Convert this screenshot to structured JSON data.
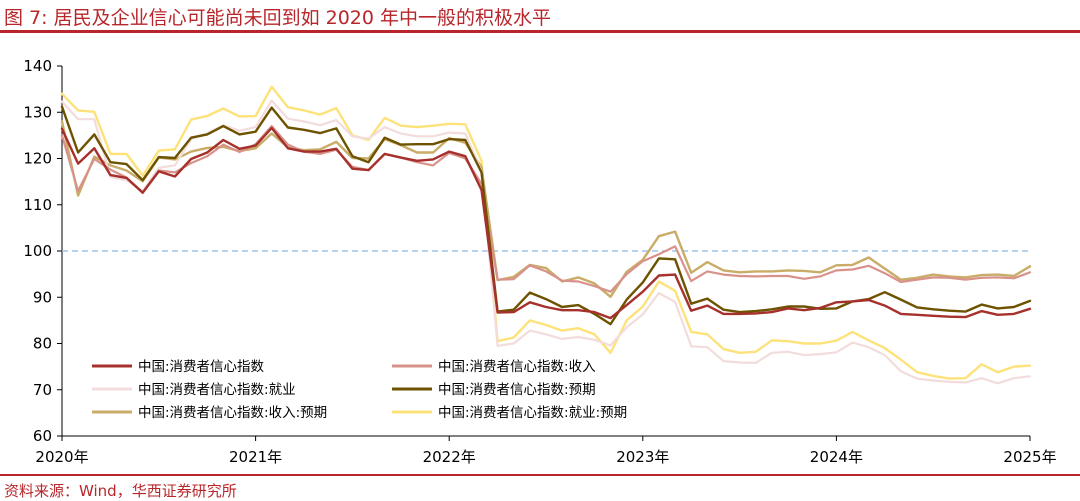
{
  "title": "图 7:  居民及企业信心可能尚未回到如 2020 年中一般的积极水平",
  "source": "资料来源：Wind，华西证券研究所",
  "chart_data": {
    "type": "line",
    "ylim": [
      60,
      140
    ],
    "yticks": [
      60,
      70,
      80,
      90,
      100,
      110,
      120,
      130,
      140
    ],
    "xlim": [
      2020.0,
      2025.0
    ],
    "xticks": [
      {
        "value": 2020,
        "label": "2020年"
      },
      {
        "value": 2021,
        "label": "2021年"
      },
      {
        "value": 2022,
        "label": "2022年"
      },
      {
        "value": 2023,
        "label": "2023年"
      },
      {
        "value": 2024,
        "label": "2024年"
      },
      {
        "value": 2025,
        "label": "2025年"
      }
    ],
    "reference_line": {
      "y": 100,
      "color": "#9dc3e6",
      "style": "dashed"
    },
    "grid": false,
    "legend_position": "bottom-left",
    "x": [
      2020.0,
      2020.083,
      2020.167,
      2020.25,
      2020.333,
      2020.417,
      2020.5,
      2020.583,
      2020.667,
      2020.75,
      2020.833,
      2020.917,
      2021.0,
      2021.083,
      2021.167,
      2021.25,
      2021.333,
      2021.417,
      2021.5,
      2021.583,
      2021.667,
      2021.75,
      2021.833,
      2021.917,
      2022.0,
      2022.083,
      2022.167,
      2022.25,
      2022.333,
      2022.417,
      2022.5,
      2022.583,
      2022.667,
      2022.75,
      2022.833,
      2022.917,
      2023.0,
      2023.083,
      2023.167,
      2023.25,
      2023.333,
      2023.417,
      2023.5,
      2023.583,
      2023.667,
      2023.75,
      2023.833,
      2023.917,
      2024.0,
      2024.083,
      2024.167,
      2024.25,
      2024.333,
      2024.417,
      2024.5,
      2024.583,
      2024.667,
      2024.75,
      2024.833,
      2024.917,
      2025.0
    ],
    "series": [
      {
        "name": "中国:消费者信心指数",
        "color": "#a5302c",
        "width": 2.4,
        "values": [
          126.4,
          118.9,
          122.2,
          116.4,
          115.8,
          112.6,
          117.2,
          116.1,
          119.9,
          121.3,
          124.0,
          122.1,
          122.8,
          126.6,
          122.2,
          121.5,
          121.5,
          122.1,
          117.8,
          117.5,
          121.0,
          120.2,
          119.5,
          119.8,
          121.5,
          120.5,
          113.2,
          86.7,
          86.8,
          88.9,
          87.9,
          87.2,
          87.2,
          86.8,
          85.5,
          88.3,
          91.2,
          94.7,
          94.9,
          87.1,
          88.2,
          86.4,
          86.4,
          86.5,
          86.8,
          87.6,
          87.2,
          87.7,
          88.9,
          89.1,
          89.4,
          88.2,
          86.4,
          86.2,
          86.0,
          85.8,
          85.7,
          87.0,
          86.2,
          86.4,
          87.5
        ]
      },
      {
        "name": "中国:消费者信心指数:收入",
        "color": "#d9928b",
        "width": 2.2,
        "values": [
          125.0,
          113.0,
          119.9,
          117.6,
          115.9,
          112.7,
          117.4,
          117.0,
          119.0,
          120.5,
          123.0,
          121.4,
          123.1,
          127.0,
          123.0,
          121.5,
          121.0,
          121.9,
          118.2,
          117.5,
          121.0,
          120.2,
          119.2,
          118.5,
          121.2,
          120.0,
          114.5,
          93.8,
          93.9,
          96.9,
          95.6,
          93.6,
          93.4,
          92.4,
          91.2,
          95.0,
          97.8,
          99.3,
          101.0,
          93.5,
          95.6,
          94.9,
          94.6,
          94.5,
          94.6,
          94.6,
          94.0,
          94.5,
          95.8,
          96.0,
          96.8,
          95.2,
          93.3,
          93.8,
          94.3,
          94.2,
          93.8,
          94.2,
          94.3,
          94.1,
          95.4
        ]
      },
      {
        "name": "中国:消费者信心指数:就业",
        "color": "#f2dcdc",
        "width": 2.2,
        "values": [
          132.3,
          128.5,
          128.5,
          116.0,
          115.3,
          112.9,
          118.0,
          118.5,
          124.2,
          125.5,
          127.2,
          126.0,
          126.8,
          132.5,
          128.6,
          128.0,
          127.2,
          128.3,
          124.8,
          124.3,
          126.8,
          125.4,
          124.8,
          124.8,
          125.6,
          125.4,
          117.2,
          79.5,
          80.0,
          82.8,
          82.0,
          81.0,
          81.4,
          80.8,
          79.6,
          83.5,
          86.3,
          90.9,
          89.0,
          79.4,
          79.2,
          76.2,
          75.9,
          75.8,
          78.0,
          78.2,
          77.5,
          77.7,
          78.1,
          80.2,
          79.2,
          77.5,
          74.0,
          72.4,
          72.0,
          71.7,
          71.6,
          72.5,
          71.4,
          72.5,
          72.9
        ]
      },
      {
        "name": "中国:消费者信心指数:预期",
        "color": "#6d5200",
        "width": 2.4,
        "values": [
          131.2,
          121.3,
          125.2,
          119.2,
          118.8,
          115.3,
          120.3,
          120.1,
          124.5,
          125.2,
          127.0,
          125.2,
          125.8,
          131.0,
          126.7,
          126.2,
          125.5,
          126.5,
          120.5,
          119.2,
          124.5,
          123.0,
          123.1,
          123.1,
          124.2,
          124.0,
          117.0,
          86.9,
          87.3,
          91.0,
          89.6,
          87.9,
          88.3,
          86.4,
          84.2,
          89.5,
          93.2,
          98.4,
          98.2,
          88.6,
          89.7,
          87.3,
          86.8,
          87.0,
          87.4,
          88.0,
          88.0,
          87.5,
          87.6,
          89.1,
          89.6,
          91.1,
          89.5,
          87.8,
          87.4,
          87.1,
          86.9,
          88.4,
          87.6,
          87.9,
          89.2
        ]
      },
      {
        "name": "中国:消费者信心指数:收入:预期",
        "color": "#c9ac67",
        "width": 2.4,
        "values": [
          128.0,
          112.0,
          120.4,
          118.5,
          117.4,
          115.1,
          120.2,
          119.8,
          121.5,
          122.3,
          122.5,
          121.6,
          122.2,
          125.4,
          122.4,
          121.8,
          122.0,
          123.6,
          120.1,
          120.0,
          124.2,
          122.9,
          121.3,
          121.3,
          124.4,
          123.4,
          118.1,
          93.7,
          94.4,
          97.0,
          96.3,
          93.4,
          94.3,
          93.0,
          90.1,
          95.5,
          98.1,
          103.2,
          104.2,
          95.3,
          97.6,
          95.8,
          95.4,
          95.6,
          95.6,
          95.8,
          95.7,
          95.4,
          96.9,
          97.0,
          98.6,
          96.2,
          93.8,
          94.2,
          94.9,
          94.5,
          94.3,
          94.8,
          94.9,
          94.6,
          96.7
        ]
      },
      {
        "name": "中国:消费者信心指数:就业:预期",
        "color": "#fde27a",
        "width": 2.4,
        "values": [
          134.0,
          130.4,
          130.1,
          121.0,
          121.0,
          116.3,
          121.7,
          122.0,
          128.4,
          129.2,
          130.8,
          129.1,
          129.2,
          135.5,
          131.1,
          130.4,
          129.5,
          130.9,
          125.0,
          124.0,
          128.8,
          127.1,
          126.8,
          127.1,
          127.5,
          127.4,
          119.5,
          80.5,
          81.3,
          85.0,
          84.0,
          82.8,
          83.3,
          82.0,
          78.0,
          85.0,
          88.0,
          93.4,
          91.4,
          82.5,
          82.0,
          78.8,
          78.0,
          78.2,
          80.7,
          80.5,
          80.0,
          80.0,
          80.6,
          82.5,
          80.7,
          79.0,
          76.5,
          73.8,
          73.0,
          72.4,
          72.5,
          75.5,
          73.8,
          75.0,
          75.2
        ]
      }
    ]
  }
}
